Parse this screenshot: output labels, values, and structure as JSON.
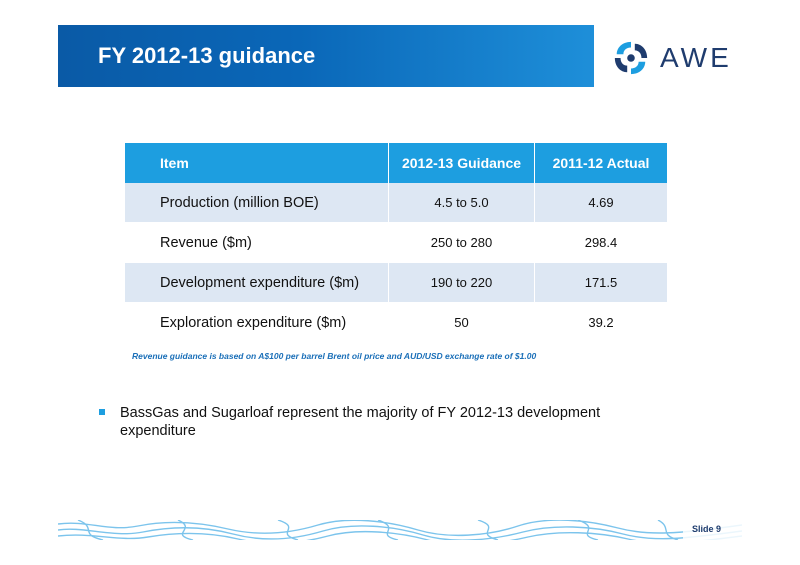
{
  "header": {
    "title": "FY 2012-13 guidance"
  },
  "logo": {
    "text": "AWE",
    "icon": "awe-swirl-icon",
    "color": "#1f3c6e"
  },
  "table": {
    "columns": [
      "Item",
      "2012-13 Guidance",
      "2011-12 Actual"
    ],
    "rows": [
      {
        "item": "Production (million BOE)",
        "guidance": "4.5 to 5.0",
        "actual": "4.69"
      },
      {
        "item": "Revenue ($m)",
        "guidance": "250 to 280",
        "actual": "298.4"
      },
      {
        "item": "Development expenditure ($m)",
        "guidance": "190 to 220",
        "actual": "171.5"
      },
      {
        "item": "Exploration expenditure ($m)",
        "guidance": "50",
        "actual": "39.2"
      }
    ]
  },
  "footnote": "Revenue guidance is based on A$100 per barrel Brent oil price and AUD/USD exchange rate of $1.00",
  "bullets": [
    "BassGas and Sugarloaf represent the majority of FY 2012-13 development expenditure"
  ],
  "footer": {
    "slide_label": "Slide 9"
  },
  "colors": {
    "title_bar": "#0a67b8",
    "table_header": "#1d9ee0",
    "row_shade": "#dde7f3"
  }
}
